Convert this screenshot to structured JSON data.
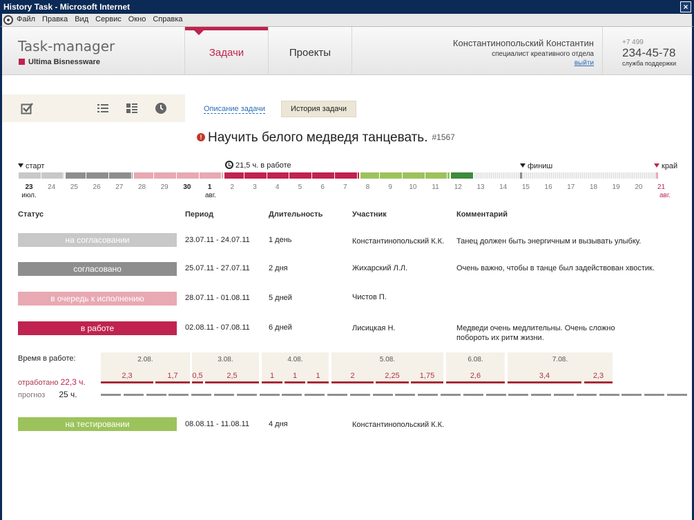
{
  "window": {
    "title": "History Task - Microsoft Internet",
    "close": "×",
    "menu": [
      "Файл",
      "Правка",
      "Вид",
      "Сервис",
      "Окно",
      "Справка"
    ]
  },
  "header": {
    "app_title": "Task-manager",
    "company": "Ultima Bisnessware",
    "nav": {
      "tasks": "Задачи",
      "projects": "Проекты"
    },
    "user": {
      "name": "Константинопольский Константин",
      "role": "специалист креативного отдела",
      "logout": "выйти"
    },
    "support": {
      "code": "+7 499",
      "phone": "234-45-78",
      "label": "служба поддержки"
    }
  },
  "toolbar": {
    "icons": [
      "checkbox-icon",
      "list-icon",
      "grid-list-icon",
      "clock-icon"
    ],
    "description_link": "Описание задачи",
    "history_button": "История задачи"
  },
  "task": {
    "warn": "!",
    "title": "Научить белого медведя танцевать.",
    "id": "#1567"
  },
  "timeline": {
    "start": "старт",
    "in_work": "21,5 ч. в работе",
    "finish": "финиш",
    "deadline": "край",
    "days": [
      "23",
      "24",
      "25",
      "26",
      "27",
      "28",
      "29",
      "30",
      "1",
      "2",
      "3",
      "4",
      "5",
      "6",
      "7",
      "8",
      "9",
      "10",
      "11",
      "12",
      "13",
      "14",
      "15",
      "16",
      "17",
      "18",
      "19",
      "20",
      "21"
    ],
    "months": {
      "jul": "июл.",
      "aug": "авг.",
      "aug_end": "авг."
    },
    "colors": {
      "review": "#c8c8c8",
      "approved": "#8e8e8e",
      "queue": "#e8a9b2",
      "work": "#c0234f",
      "test": "#9cc35b",
      "dark": "#3d8b3d"
    }
  },
  "table": {
    "headers": {
      "status": "Статус",
      "period": "Период",
      "duration": "Длительность",
      "member": "Участник",
      "comment": "Комментарий"
    },
    "rows": [
      {
        "status": "на согласовании",
        "color": "#c8c8c8",
        "period": "23.07.11 - 24.07.11",
        "duration": "1 день",
        "member": "Константинопольский К.К.",
        "comment": "Танец должен быть энергичным и вызывать улыбку."
      },
      {
        "status": "согласовано",
        "color": "#8e8e8e",
        "period": "25.07.11 - 27.07.11",
        "duration": "2 дня",
        "member": "Жихарский Л.Л.",
        "comment": "Очень важно, чтобы в танце был задействован хвостик."
      },
      {
        "status": "в очередь к исполнению",
        "color": "#e8a9b2",
        "period": "28.07.11 - 01.08.11",
        "duration": "5 дней",
        "member": "Чистов П.",
        "comment": ""
      },
      {
        "status": "в работе",
        "color": "#c0234f",
        "period": "02.08.11 - 07.08.11",
        "duration": "6 дней",
        "member": "Лисицкая Н.",
        "comment": "Медведи очень медлительны. Очень сложно побороть их ритм жизни."
      },
      {
        "status": "на тестировании",
        "color": "#9cc35b",
        "period": "08.08.11 - 11.08.11",
        "duration": "4 дня",
        "member": "Константинопольский К.К.",
        "comment": ""
      }
    ]
  },
  "work_time": {
    "label": "Время в работе:",
    "worked_label": "отработано",
    "worked_value": "22,3 ч.",
    "forecast_label": "прогноз",
    "forecast_value": "25 ч.",
    "days": [
      "2.08.",
      "3.08.",
      "4.08.",
      "5.08.",
      "6.08.",
      "7.08."
    ],
    "hours": [
      "2,3",
      "1,7",
      "0,5",
      "2,5",
      "1",
      "1",
      "1",
      "2",
      "2,25",
      "1,75",
      "2,6",
      "3,4",
      "2,3"
    ]
  }
}
